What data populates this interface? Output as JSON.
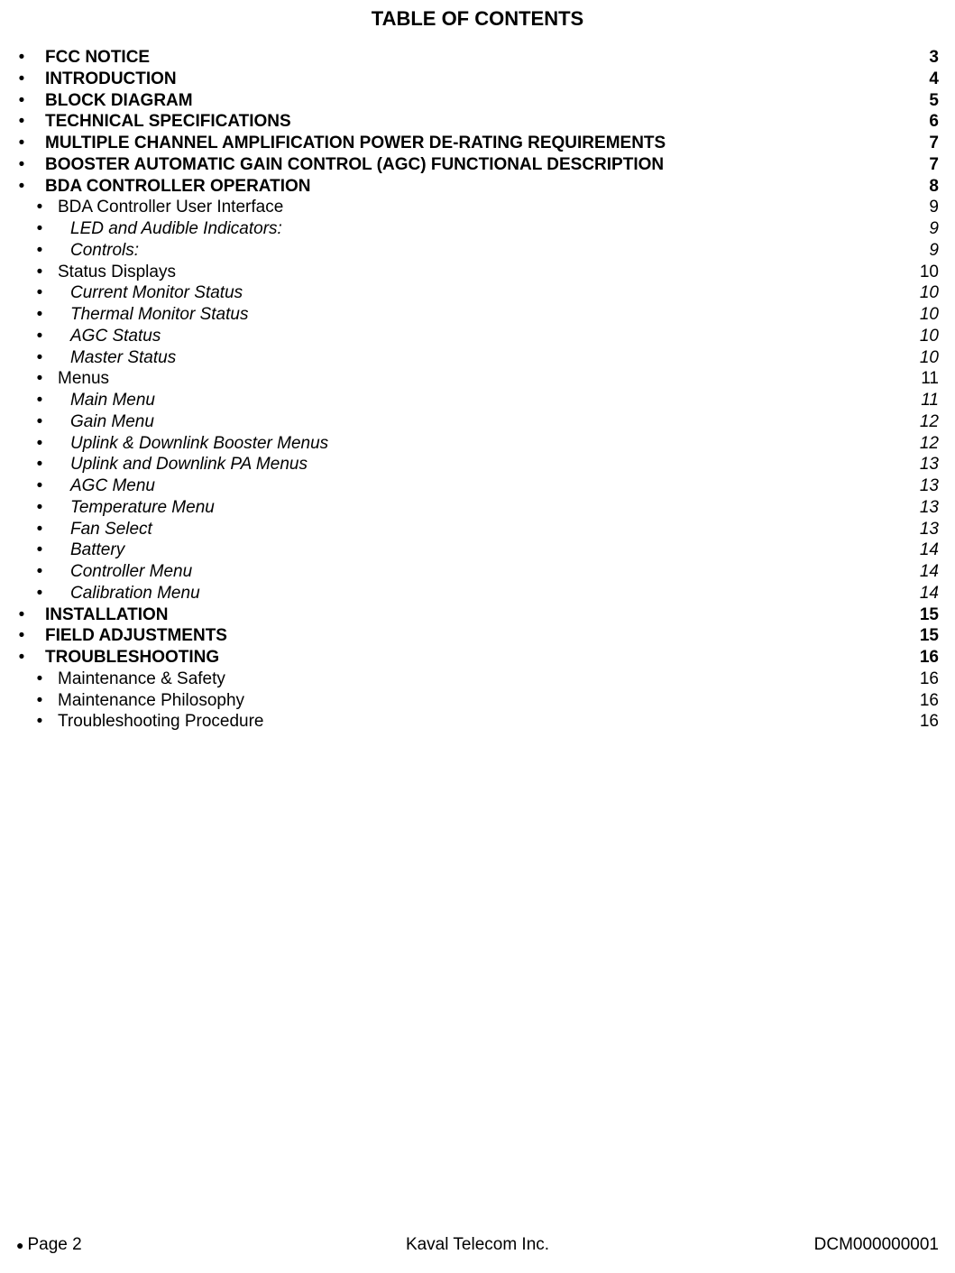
{
  "title": "TABLE OF CONTENTS",
  "entries": [
    {
      "level": 1,
      "text": "FCC NOTICE",
      "page": "3"
    },
    {
      "level": 1,
      "text": "INTRODUCTION",
      "page": "4"
    },
    {
      "level": 1,
      "text": "BLOCK DIAGRAM",
      "page": "5"
    },
    {
      "level": 1,
      "text": "TECHNICAL SPECIFICATIONS",
      "page": "6"
    },
    {
      "level": 1,
      "text": "MULTIPLE CHANNEL AMPLIFICATION POWER DE-RATING REQUIREMENTS",
      "page": "7"
    },
    {
      "level": 1,
      "text": "BOOSTER AUTOMATIC GAIN CONTROL (AGC) FUNCTIONAL DESCRIPTION",
      "page": "7"
    },
    {
      "level": 1,
      "text": "BDA CONTROLLER OPERATION",
      "page": "8"
    },
    {
      "level": 2,
      "text": "BDA  Controller User Interface",
      "page": "9"
    },
    {
      "level": 3,
      "text": "LED and Audible Indicators:",
      "page": "9"
    },
    {
      "level": 3,
      "text": "Controls:",
      "page": "9"
    },
    {
      "level": 2,
      "text": "Status Displays",
      "page": "10"
    },
    {
      "level": 3,
      "text": "Current Monitor Status",
      "page": "10"
    },
    {
      "level": 3,
      "text": "Thermal Monitor Status",
      "page": "10"
    },
    {
      "level": 3,
      "text": "AGC Status",
      "page": "10"
    },
    {
      "level": 3,
      "text": "Master Status",
      "page": "10"
    },
    {
      "level": 2,
      "text": "Menus",
      "page": "11"
    },
    {
      "level": 3,
      "text": "Main Menu",
      "page": "11"
    },
    {
      "level": 3,
      "text": "Gain Menu",
      "page": "12"
    },
    {
      "level": 3,
      "text": "Uplink & Downlink Booster Menus",
      "page": "12"
    },
    {
      "level": 3,
      "text": "Uplink and Downlink PA Menus",
      "page": "13"
    },
    {
      "level": 3,
      "text": "AGC Menu",
      "page": "13"
    },
    {
      "level": 3,
      "text": "Temperature Menu",
      "page": "13"
    },
    {
      "level": 3,
      "text": "Fan Select",
      "page": "13"
    },
    {
      "level": 3,
      "text": "Battery",
      "page": "14"
    },
    {
      "level": 3,
      "text": "Controller Menu",
      "page": "14"
    },
    {
      "level": 3,
      "text": "Calibration Menu",
      "page": "14"
    },
    {
      "level": 1,
      "text": "INSTALLATION",
      "page": "15"
    },
    {
      "level": 1,
      "text": "FIELD ADJUSTMENTS",
      "page": "15"
    },
    {
      "level": 1,
      "text": "TROUBLESHOOTING",
      "page": "16"
    },
    {
      "level": 2,
      "text": "Maintenance & Safety",
      "page": "16"
    },
    {
      "level": 2,
      "text": "Maintenance Philosophy",
      "page": "16"
    },
    {
      "level": 2,
      "text": "Troubleshooting Procedure",
      "page": "16"
    }
  ],
  "footer": {
    "left": "Page 2",
    "center": "Kaval Telecom Inc.",
    "right": "DCM000000001"
  },
  "style": {
    "background_color": "#ffffff",
    "text_color": "#000000",
    "title_fontsize": 22,
    "body_fontsize": 19,
    "font_family": "Arial, Helvetica, sans-serif",
    "bullet_glyph": "•"
  }
}
